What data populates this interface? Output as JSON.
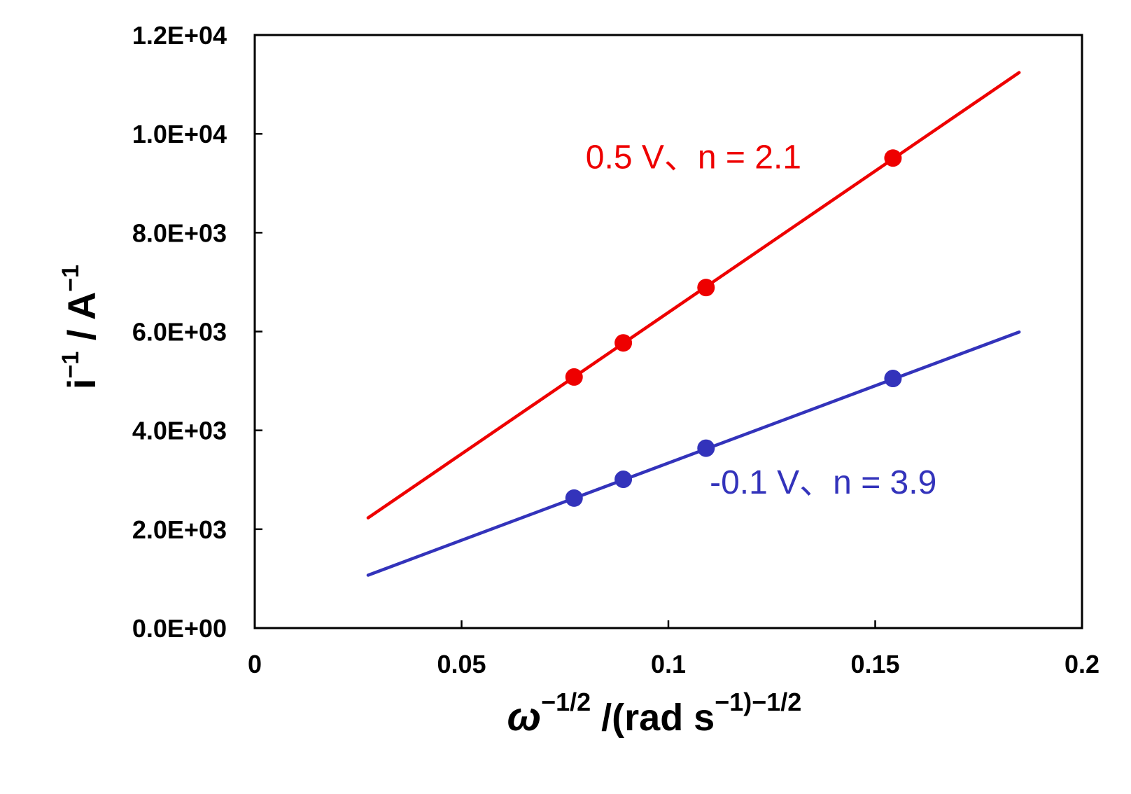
{
  "chart_data": {
    "type": "scatter",
    "title": "",
    "xlabel": {
      "symbol": "ω",
      "symbol_exp": "−1/2",
      "text": " /(rad s",
      "text_exp": "−1)−1/2"
    },
    "ylabel": {
      "base": "i",
      "base_exp": "−1",
      "unit": " / A",
      "unit_exp": "−1"
    },
    "xlim": [
      0,
      0.2
    ],
    "ylim": [
      0,
      12000
    ],
    "x_ticks": [
      {
        "value": 0,
        "label": "0"
      },
      {
        "value": 0.05,
        "label": "0.05"
      },
      {
        "value": 0.1,
        "label": "0.1"
      },
      {
        "value": 0.15,
        "label": "0.15"
      },
      {
        "value": 0.2,
        "label": "0.2"
      }
    ],
    "y_ticks": [
      {
        "value": 0,
        "label": "0.0E+00"
      },
      {
        "value": 2000,
        "label": "2.0E+03"
      },
      {
        "value": 4000,
        "label": "4.0E+03"
      },
      {
        "value": 6000,
        "label": "6.0E+03"
      },
      {
        "value": 8000,
        "label": "8.0E+03"
      },
      {
        "value": 10000,
        "label": "1.0E+04"
      },
      {
        "value": 12000,
        "label": "1.2E+04"
      }
    ],
    "series": [
      {
        "name": "0.5 V、n = 2.1",
        "color": "#ee0000",
        "points": [
          {
            "x": 0.0772,
            "y": 5080
          },
          {
            "x": 0.0891,
            "y": 5770
          },
          {
            "x": 0.1091,
            "y": 6890
          },
          {
            "x": 0.1543,
            "y": 9510
          }
        ],
        "fit_line": [
          [
            0.0274,
            2230
          ],
          [
            0.1848,
            11240
          ]
        ],
        "label_anchor": [
          0.08,
          9300
        ]
      },
      {
        "name": "-0.1 V、n = 3.9",
        "color": "#3333bb",
        "points": [
          {
            "x": 0.0772,
            "y": 2630
          },
          {
            "x": 0.0891,
            "y": 3010
          },
          {
            "x": 0.1091,
            "y": 3640
          },
          {
            "x": 0.1543,
            "y": 5050
          }
        ],
        "fit_line": [
          [
            0.0274,
            1070
          ],
          [
            0.1848,
            5990
          ]
        ],
        "label_anchor": [
          0.11,
          2720
        ]
      }
    ],
    "colors": {
      "axis": "#000000",
      "background": "#ffffff"
    }
  }
}
